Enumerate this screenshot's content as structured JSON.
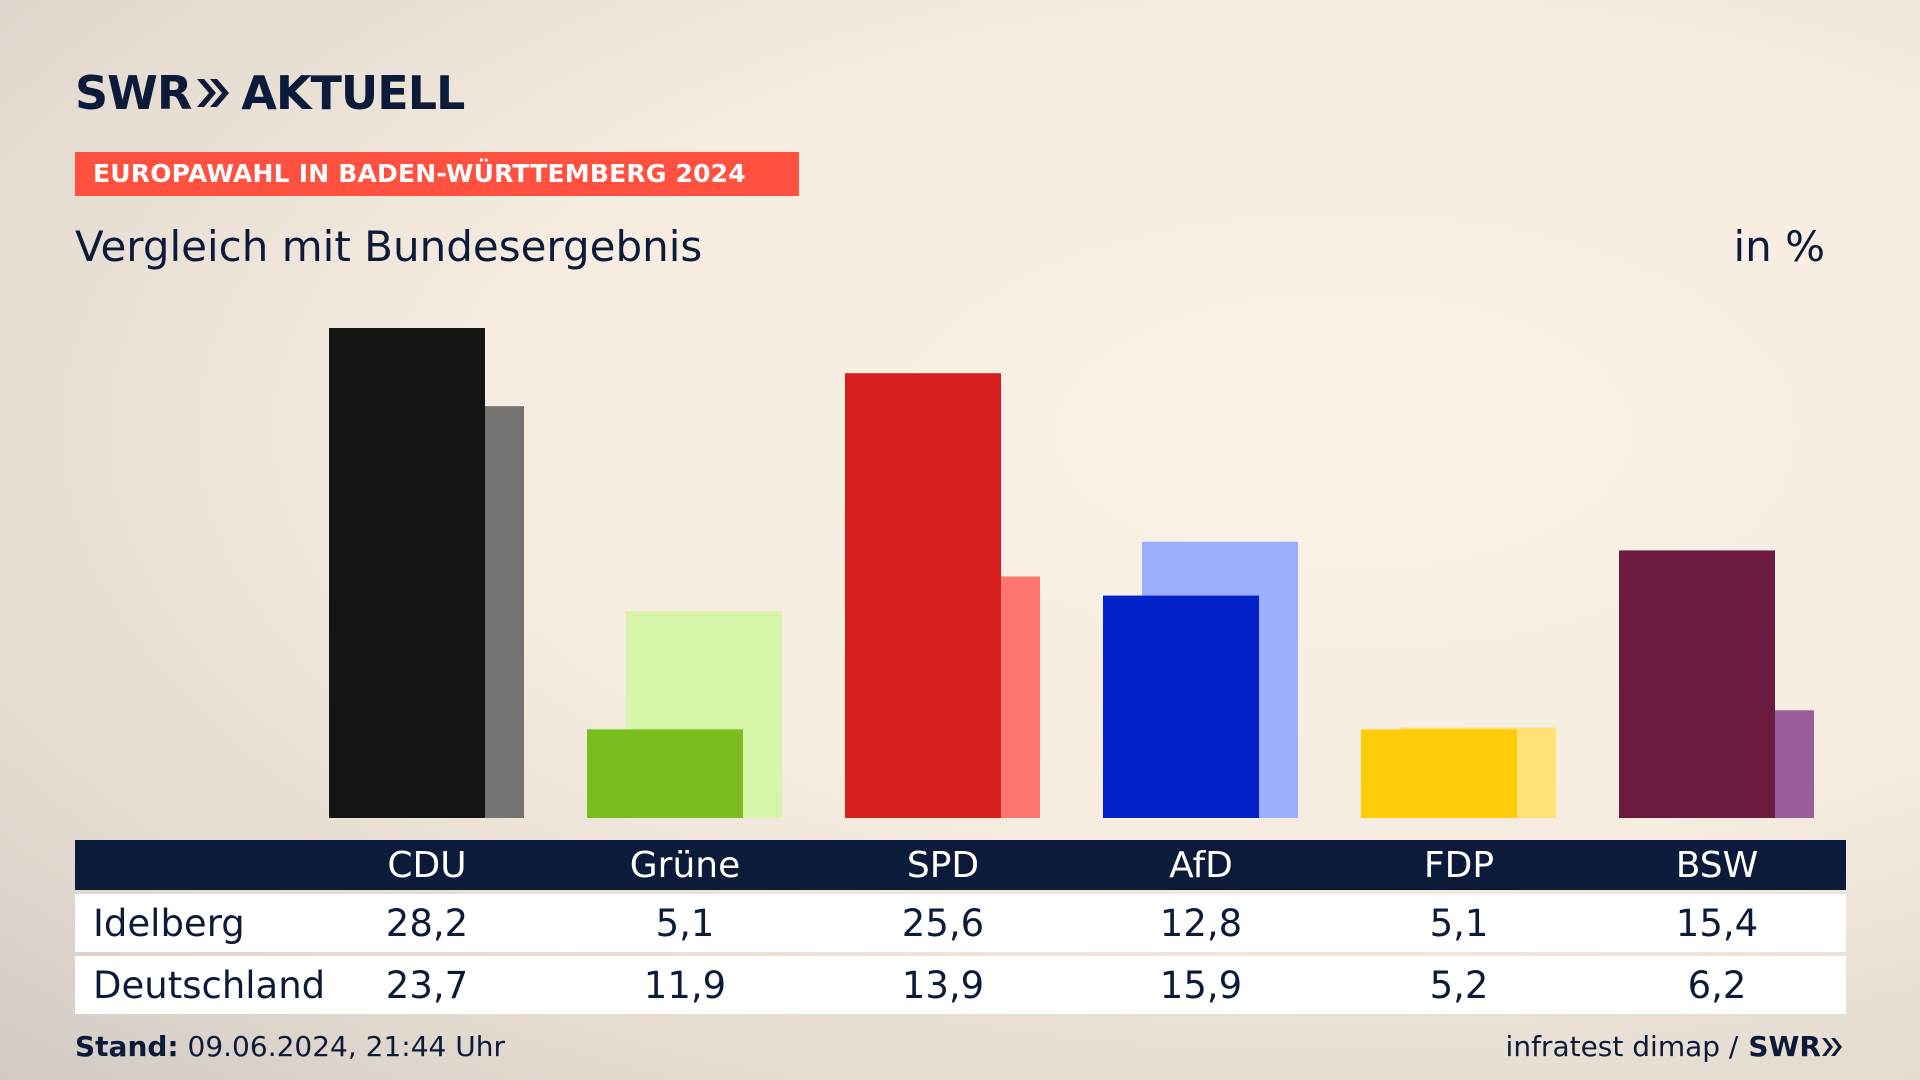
{
  "header": {
    "logo_left": "SWR",
    "logo_right": "AKTUELL",
    "tag": "EUROPAWAHL IN BADEN-WÜRTTEMBERG 2024",
    "subtitle": "Vergleich mit Bundesergebnis",
    "unit": "in %"
  },
  "colors": {
    "tag_bg": "#ff5040",
    "table_header_bg": "#0d1b3a",
    "text": "#0d1b3a"
  },
  "chart_data": {
    "type": "bar",
    "categories": [
      "CDU",
      "Grüne",
      "SPD",
      "AfD",
      "FDP",
      "BSW"
    ],
    "series": [
      {
        "name": "Idelberg",
        "values": [
          28.2,
          5.1,
          25.6,
          12.8,
          5.1,
          15.4
        ],
        "colors": [
          "#141414",
          "#7abd1e",
          "#d61f1f",
          "#0022c8",
          "#ffcc0a",
          "#6b1a40"
        ]
      },
      {
        "name": "Deutschland",
        "values": [
          23.7,
          11.9,
          13.9,
          15.9,
          5.2,
          6.2
        ],
        "colors": [
          "#747372",
          "#d6f5a8",
          "#ff7670",
          "#9daeff",
          "#ffe178",
          "#9a5e9d"
        ]
      }
    ],
    "ylim": [
      0,
      28.2
    ]
  },
  "table": {
    "headers": [
      "CDU",
      "Grüne",
      "SPD",
      "AfD",
      "FDP",
      "BSW"
    ],
    "rows": [
      {
        "label": "Idelberg",
        "values": [
          "28,2",
          "5,1",
          "25,6",
          "12,8",
          "5,1",
          "15,4"
        ]
      },
      {
        "label": "Deutschland",
        "values": [
          "23,7",
          "11,9",
          "13,9",
          "15,9",
          "5,2",
          "6,2"
        ]
      }
    ]
  },
  "footer": {
    "stand_label": "Stand:",
    "stand_value": "09.06.2024, 21:44 Uhr",
    "source": "infratest dimap /",
    "source_logo": "SWR"
  }
}
